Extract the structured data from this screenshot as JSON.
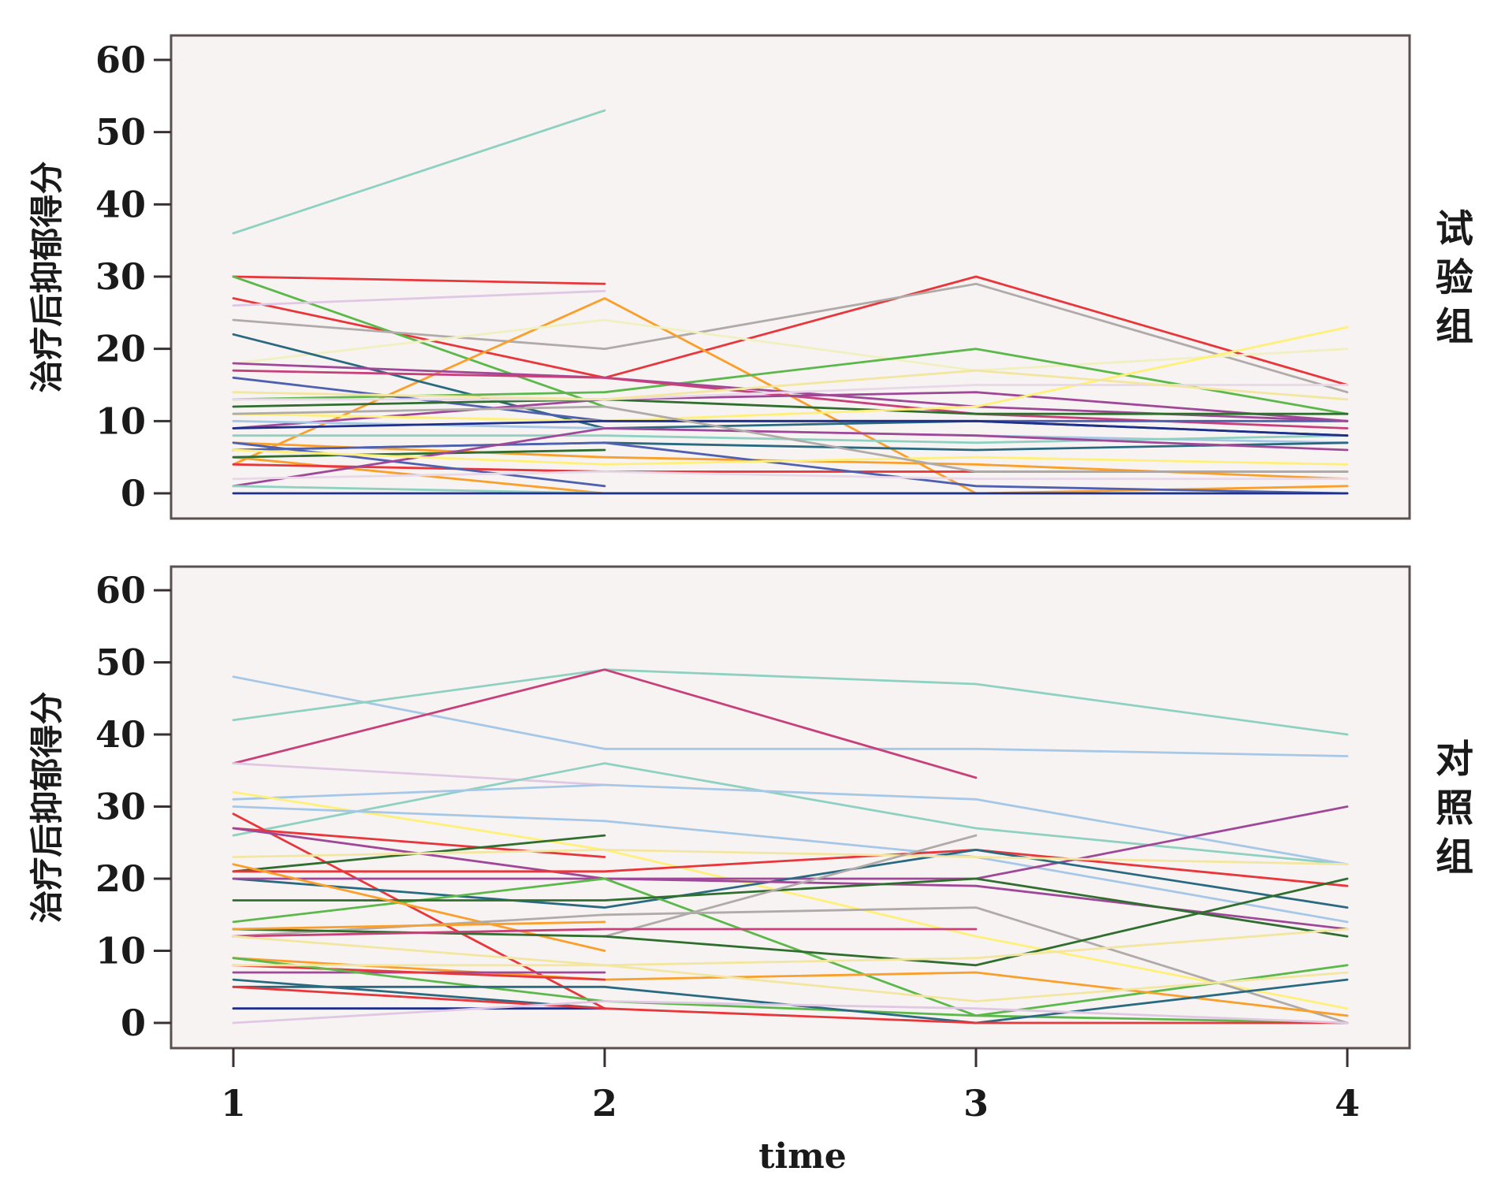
{
  "chart_data": {
    "type": "line",
    "xlabel": "time",
    "x": [
      1,
      2,
      3,
      4
    ],
    "panels": [
      {
        "label": "试验组",
        "ylabel": "治疗后抑郁得分",
        "ylim": [
          0,
          60
        ],
        "yticks": [
          0,
          10,
          20,
          30,
          40,
          50,
          60
        ],
        "series": [
          {
            "color": "#8fd1c1",
            "values": [
              36,
              53,
              null,
              null
            ]
          },
          {
            "color": "#e8363a",
            "values": [
              30,
              29,
              null,
              null
            ]
          },
          {
            "color": "#e8363a",
            "values": [
              27,
              16,
              30,
              15
            ]
          },
          {
            "color": "#5cb84a",
            "values": [
              30,
              12,
              null,
              null
            ]
          },
          {
            "color": "#e0c8e4",
            "values": [
              26,
              28,
              null,
              null
            ]
          },
          {
            "color": "#b0aaa8",
            "values": [
              24,
              20,
              29,
              14
            ]
          },
          {
            "color": "#fa9f2a",
            "values": [
              4,
              27,
              0,
              0
            ]
          },
          {
            "color": "#f0f0c0",
            "values": [
              18,
              24,
              17,
              20
            ]
          },
          {
            "color": "#2a6a80",
            "values": [
              22,
              9,
              10,
              8
            ]
          },
          {
            "color": "#5cb84a",
            "values": [
              13,
              14,
              20,
              11
            ]
          },
          {
            "color": "#a04898",
            "values": [
              18,
              16,
              12,
              10
            ]
          },
          {
            "color": "#c8407a",
            "values": [
              17,
              16,
              11,
              9
            ]
          },
          {
            "color": "#5060b0",
            "values": [
              16,
              10,
              10,
              10
            ]
          },
          {
            "color": "#a04898",
            "values": [
              9,
              13,
              14,
              10
            ]
          },
          {
            "color": "#2f6e2f",
            "values": [
              12,
              13,
              11,
              11
            ]
          },
          {
            "color": "#fff07a",
            "values": [
              11,
              10,
              12,
              23
            ]
          },
          {
            "color": "#e8d8e8",
            "values": [
              13,
              13,
              15,
              15
            ]
          },
          {
            "color": "#f2e6a0",
            "values": [
              14,
              13,
              17,
              13
            ]
          },
          {
            "color": "#a6c8e6",
            "values": [
              10,
              9,
              8,
              7
            ]
          },
          {
            "color": "#8fd1c1",
            "values": [
              8,
              8,
              7,
              8
            ]
          },
          {
            "color": "#2a6a80",
            "values": [
              6,
              7,
              6,
              7
            ]
          },
          {
            "color": "#1f2f8c",
            "values": [
              9,
              10,
              10,
              8
            ]
          },
          {
            "color": "#fa9f2a",
            "values": [
              7,
              5,
              4,
              2
            ]
          },
          {
            "color": "#fa9f2a",
            "values": [
              5,
              0,
              0,
              1
            ]
          },
          {
            "color": "#e8363a",
            "values": [
              4,
              3,
              3,
              3
            ]
          },
          {
            "color": "#2f6e2f",
            "values": [
              5,
              6,
              null,
              null
            ]
          },
          {
            "color": "#5060b0",
            "values": [
              7,
              1,
              null,
              null
            ]
          },
          {
            "color": "#5060b0",
            "values": [
              6,
              7,
              1,
              0
            ]
          },
          {
            "color": "#a04898",
            "values": [
              1,
              9,
              8,
              6
            ]
          },
          {
            "color": "#fff07a",
            "values": [
              6,
              4,
              5,
              4
            ]
          },
          {
            "color": "#b0aaa8",
            "values": [
              11,
              12,
              3,
              3
            ]
          },
          {
            "color": "#8fd1c1",
            "values": [
              1,
              0,
              0,
              0
            ]
          },
          {
            "color": "#1f2f8c",
            "values": [
              0,
              0,
              0,
              0
            ]
          },
          {
            "color": "#e8d8e8",
            "values": [
              2,
              3,
              2,
              2
            ]
          }
        ]
      },
      {
        "label": "对照组",
        "ylabel": "治疗后抑郁得分",
        "ylim": [
          0,
          60
        ],
        "yticks": [
          0,
          10,
          20,
          30,
          40,
          50,
          60
        ],
        "series": [
          {
            "color": "#a6c8e6",
            "values": [
              48,
              38,
              38,
              37
            ]
          },
          {
            "color": "#8fd1c1",
            "values": [
              42,
              49,
              47,
              40
            ]
          },
          {
            "color": "#c8407a",
            "values": [
              36,
              49,
              34,
              null
            ]
          },
          {
            "color": "#e0c8e4",
            "values": [
              36,
              33,
              null,
              null
            ]
          },
          {
            "color": "#8fd1c1",
            "values": [
              26,
              36,
              27,
              22
            ]
          },
          {
            "color": "#a6c8e6",
            "values": [
              31,
              33,
              31,
              22
            ]
          },
          {
            "color": "#fff07a",
            "values": [
              32,
              24,
              12,
              2
            ]
          },
          {
            "color": "#a6c8e6",
            "values": [
              30,
              28,
              23,
              14
            ]
          },
          {
            "color": "#e8363a",
            "values": [
              29,
              2,
              null,
              null
            ]
          },
          {
            "color": "#e8363a",
            "values": [
              27,
              23,
              null,
              null
            ]
          },
          {
            "color": "#a04898",
            "values": [
              27,
              20,
              20,
              30
            ]
          },
          {
            "color": "#2f6e2f",
            "values": [
              21,
              26,
              null,
              null
            ]
          },
          {
            "color": "#e8363a",
            "values": [
              21,
              21,
              24,
              19
            ]
          },
          {
            "color": "#2a6a80",
            "values": [
              20,
              16,
              24,
              16
            ]
          },
          {
            "color": "#a04898",
            "values": [
              20,
              20,
              19,
              13
            ]
          },
          {
            "color": "#f2e6a0",
            "values": [
              23,
              24,
              23,
              22
            ]
          },
          {
            "color": "#5cb84a",
            "values": [
              14,
              20,
              1,
              8
            ]
          },
          {
            "color": "#2f6e2f",
            "values": [
              17,
              17,
              20,
              12
            ]
          },
          {
            "color": "#fa9f2a",
            "values": [
              22,
              10,
              null,
              null
            ]
          },
          {
            "color": "#b0aaa8",
            "values": [
              12,
              15,
              16,
              0
            ]
          },
          {
            "color": "#b0aaa8",
            "values": [
              13,
              12,
              26,
              null
            ]
          },
          {
            "color": "#2f6e2f",
            "values": [
              13,
              12,
              8,
              20
            ]
          },
          {
            "color": "#fa9f2a",
            "values": [
              13,
              14,
              null,
              null
            ]
          },
          {
            "color": "#c8407a",
            "values": [
              12,
              13,
              13,
              null
            ]
          },
          {
            "color": "#f2e6a0",
            "values": [
              12,
              8,
              9,
              13
            ]
          },
          {
            "color": "#fa9f2a",
            "values": [
              9,
              6,
              7,
              1
            ]
          },
          {
            "color": "#a04898",
            "values": [
              7,
              7,
              null,
              null
            ]
          },
          {
            "color": "#e8363a",
            "values": [
              8,
              6,
              null,
              null
            ]
          },
          {
            "color": "#5cb84a",
            "values": [
              9,
              3,
              1,
              0
            ]
          },
          {
            "color": "#2a6a80",
            "values": [
              5,
              5,
              0,
              6
            ]
          },
          {
            "color": "#2a6a80",
            "values": [
              6,
              2,
              null,
              null
            ]
          },
          {
            "color": "#1f2f8c",
            "values": [
              2,
              2,
              null,
              null
            ]
          },
          {
            "color": "#e8363a",
            "values": [
              5,
              2,
              0,
              0
            ]
          },
          {
            "color": "#e0c8e4",
            "values": [
              0,
              3,
              2,
              0
            ]
          },
          {
            "color": "#f2e6a0",
            "values": [
              8,
              8,
              3,
              7
            ]
          }
        ]
      }
    ]
  }
}
